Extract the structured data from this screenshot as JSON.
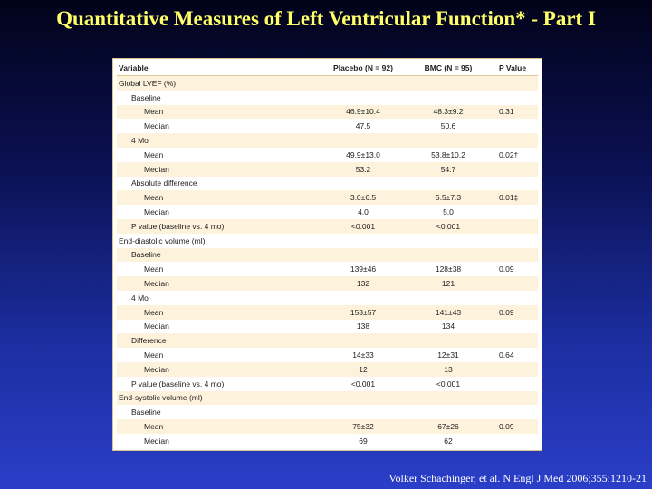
{
  "slide": {
    "title": "Quantitative Measures of Left Ventricular Function* - Part I",
    "citation": "Volker Schachinger, et al. N Engl J Med 2006;355:1210-21"
  },
  "table": {
    "headers": [
      "Variable",
      "Placebo (N = 92)",
      "BMC (N = 95)",
      "P Value"
    ],
    "rows": [
      {
        "label": "Global LVEF (%)",
        "level": 0,
        "placebo": "",
        "bmc": "",
        "p": ""
      },
      {
        "label": "Baseline",
        "level": 1,
        "placebo": "",
        "bmc": "",
        "p": ""
      },
      {
        "label": "Mean",
        "level": 2,
        "placebo": "46.9±10.4",
        "bmc": "48.3±9.2",
        "p": "0.31"
      },
      {
        "label": "Median",
        "level": 2,
        "placebo": "47.5",
        "bmc": "50.6",
        "p": ""
      },
      {
        "label": "4 Mo",
        "level": 1,
        "placebo": "",
        "bmc": "",
        "p": ""
      },
      {
        "label": "Mean",
        "level": 2,
        "placebo": "49.9±13.0",
        "bmc": "53.8±10.2",
        "p": "0.02†"
      },
      {
        "label": "Median",
        "level": 2,
        "placebo": "53.2",
        "bmc": "54.7",
        "p": ""
      },
      {
        "label": "Absolute difference",
        "level": 1,
        "placebo": "",
        "bmc": "",
        "p": ""
      },
      {
        "label": "Mean",
        "level": 2,
        "placebo": "3.0±6.5",
        "bmc": "5.5±7.3",
        "p": "0.01‡"
      },
      {
        "label": "Median",
        "level": 2,
        "placebo": "4.0",
        "bmc": "5.0",
        "p": ""
      },
      {
        "label": "P value (baseline vs. 4 mo)",
        "level": 1,
        "placebo": "<0.001",
        "bmc": "<0.001",
        "p": ""
      },
      {
        "label": "End-diastolic volume (ml)",
        "level": 0,
        "placebo": "",
        "bmc": "",
        "p": ""
      },
      {
        "label": "Baseline",
        "level": 1,
        "placebo": "",
        "bmc": "",
        "p": ""
      },
      {
        "label": "Mean",
        "level": 2,
        "placebo": "139±46",
        "bmc": "128±38",
        "p": "0.09"
      },
      {
        "label": "Median",
        "level": 2,
        "placebo": "132",
        "bmc": "121",
        "p": ""
      },
      {
        "label": "4 Mo",
        "level": 1,
        "placebo": "",
        "bmc": "",
        "p": ""
      },
      {
        "label": "Mean",
        "level": 2,
        "placebo": "153±57",
        "bmc": "141±43",
        "p": "0.09"
      },
      {
        "label": "Median",
        "level": 2,
        "placebo": "138",
        "bmc": "134",
        "p": ""
      },
      {
        "label": "Difference",
        "level": 1,
        "placebo": "",
        "bmc": "",
        "p": ""
      },
      {
        "label": "Mean",
        "level": 2,
        "placebo": "14±33",
        "bmc": "12±31",
        "p": "0.64"
      },
      {
        "label": "Median",
        "level": 2,
        "placebo": "12",
        "bmc": "13",
        "p": ""
      },
      {
        "label": "P value (baseline vs. 4 mo)",
        "level": 1,
        "placebo": "<0.001",
        "bmc": "<0.001",
        "p": ""
      },
      {
        "label": "End-systolic volume (ml)",
        "level": 0,
        "placebo": "",
        "bmc": "",
        "p": ""
      },
      {
        "label": "Baseline",
        "level": 1,
        "placebo": "",
        "bmc": "",
        "p": ""
      },
      {
        "label": "Mean",
        "level": 2,
        "placebo": "75±32",
        "bmc": "67±26",
        "p": "0.09"
      },
      {
        "label": "Median",
        "level": 2,
        "placebo": "69",
        "bmc": "62",
        "p": ""
      }
    ]
  }
}
